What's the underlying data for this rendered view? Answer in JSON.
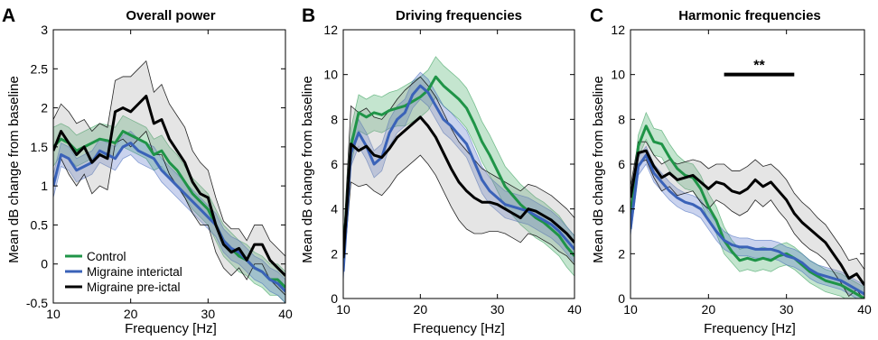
{
  "chart_data": [
    {
      "panel": "A",
      "type": "line",
      "title": "Overall power",
      "xlabel": "Frequency [Hz]",
      "ylabel": "Mean dB change from baseline",
      "xlim": [
        10,
        40
      ],
      "ylim": [
        -0.5,
        3
      ],
      "xticks": [
        "10",
        "20",
        "30",
        "40"
      ],
      "yticks": [
        "-0.5",
        "0",
        "0.5",
        "1",
        "1.5",
        "2",
        "2.5",
        "3"
      ],
      "legend": "bottom-left",
      "x": [
        10,
        11,
        12,
        13,
        14,
        15,
        16,
        17,
        18,
        19,
        20,
        21,
        22,
        23,
        24,
        25,
        26,
        27,
        28,
        29,
        30,
        31,
        32,
        33,
        34,
        35,
        36,
        37,
        38,
        39,
        40
      ],
      "series": [
        {
          "name": "Control",
          "color": "#1f9447",
          "values": [
            1.5,
            1.6,
            1.55,
            1.45,
            1.5,
            1.55,
            1.6,
            1.58,
            1.55,
            1.7,
            1.65,
            1.6,
            1.55,
            1.4,
            1.45,
            1.3,
            1.2,
            1.05,
            0.9,
            0.8,
            0.7,
            0.5,
            0.3,
            0.2,
            0.1,
            0.05,
            -0.05,
            -0.1,
            -0.2,
            -0.2,
            -0.3
          ],
          "upper": [
            1.75,
            1.8,
            1.75,
            1.65,
            1.7,
            1.75,
            1.8,
            1.78,
            1.75,
            1.9,
            1.85,
            1.8,
            1.75,
            1.6,
            1.65,
            1.5,
            1.4,
            1.25,
            1.1,
            1.0,
            0.9,
            0.7,
            0.5,
            0.4,
            0.3,
            0.25,
            0.15,
            0.1,
            0.0,
            0.0,
            -0.1
          ],
          "lower": [
            1.25,
            1.4,
            1.35,
            1.25,
            1.3,
            1.35,
            1.4,
            1.38,
            1.35,
            1.5,
            1.45,
            1.4,
            1.35,
            1.2,
            1.25,
            1.1,
            1.0,
            0.85,
            0.7,
            0.6,
            0.5,
            0.3,
            0.1,
            0.0,
            -0.1,
            -0.15,
            -0.25,
            -0.3,
            -0.4,
            -0.4,
            -0.5
          ]
        },
        {
          "name": "Migraine interictal",
          "color": "#3a62b8",
          "values": [
            1.0,
            1.4,
            1.35,
            1.2,
            1.25,
            1.3,
            1.45,
            1.4,
            1.35,
            1.5,
            1.55,
            1.45,
            1.4,
            1.35,
            1.2,
            1.1,
            1.0,
            0.9,
            0.8,
            0.7,
            0.6,
            0.5,
            0.3,
            0.2,
            0.15,
            0.05,
            -0.05,
            -0.1,
            -0.2,
            -0.25,
            -0.35
          ],
          "upper": [
            1.15,
            1.55,
            1.5,
            1.35,
            1.4,
            1.45,
            1.6,
            1.55,
            1.5,
            1.65,
            1.7,
            1.6,
            1.55,
            1.5,
            1.35,
            1.25,
            1.15,
            1.05,
            0.95,
            0.85,
            0.75,
            0.65,
            0.45,
            0.35,
            0.3,
            0.2,
            0.1,
            0.05,
            -0.05,
            -0.1,
            -0.2
          ],
          "lower": [
            0.85,
            1.25,
            1.2,
            1.05,
            1.1,
            1.15,
            1.3,
            1.25,
            1.2,
            1.35,
            1.4,
            1.3,
            1.25,
            1.2,
            1.05,
            0.95,
            0.85,
            0.75,
            0.65,
            0.55,
            0.45,
            0.35,
            0.15,
            0.05,
            0.0,
            -0.1,
            -0.2,
            -0.25,
            -0.35,
            -0.4,
            -0.5
          ]
        },
        {
          "name": "Migraine pre-ictal",
          "color": "#000000",
          "values": [
            1.45,
            1.7,
            1.55,
            1.4,
            1.5,
            1.3,
            1.4,
            1.35,
            1.95,
            2.0,
            1.95,
            2.05,
            2.15,
            1.8,
            1.85,
            1.6,
            1.45,
            1.3,
            1.05,
            0.9,
            0.85,
            0.5,
            0.25,
            0.15,
            0.2,
            0.05,
            0.25,
            0.25,
            0.05,
            -0.05,
            -0.15
          ],
          "upper": [
            1.85,
            2.05,
            1.95,
            1.8,
            1.85,
            1.7,
            1.8,
            1.75,
            2.35,
            2.4,
            2.4,
            2.5,
            2.6,
            2.2,
            2.3,
            2.05,
            1.9,
            1.75,
            1.45,
            1.3,
            1.2,
            0.85,
            0.55,
            0.45,
            0.45,
            0.3,
            0.5,
            0.5,
            0.3,
            0.2,
            0.1
          ],
          "lower": [
            1.05,
            1.35,
            1.15,
            1.0,
            1.15,
            0.9,
            1.0,
            0.95,
            1.55,
            1.6,
            1.5,
            1.6,
            1.7,
            1.4,
            1.4,
            1.15,
            1.0,
            0.85,
            0.65,
            0.5,
            0.5,
            0.15,
            -0.05,
            -0.15,
            -0.05,
            -0.2,
            0.0,
            0.0,
            -0.2,
            -0.3,
            -0.4
          ]
        }
      ]
    },
    {
      "panel": "B",
      "type": "line",
      "title": "Driving frequencies",
      "xlabel": "Frequency [Hz]",
      "ylabel": "Mean dB change from baseline",
      "xlim": [
        10,
        40
      ],
      "ylim": [
        0,
        12
      ],
      "xticks": [
        "10",
        "20",
        "30",
        "40"
      ],
      "yticks": [
        "0",
        "2",
        "4",
        "6",
        "8",
        "10",
        "12"
      ],
      "x": [
        10,
        11,
        12,
        13,
        14,
        15,
        16,
        17,
        18,
        19,
        20,
        21,
        22,
        23,
        24,
        25,
        26,
        27,
        28,
        29,
        30,
        31,
        32,
        33,
        34,
        35,
        36,
        37,
        38,
        39,
        40
      ],
      "series": [
        {
          "name": "Control",
          "color": "#1f9447",
          "values": [
            2,
            6.8,
            8.3,
            8.1,
            8.3,
            8.2,
            8.4,
            8.5,
            8.6,
            8.8,
            9.0,
            9.3,
            9.9,
            9.5,
            9.2,
            8.9,
            8.5,
            7.8,
            7.0,
            6.4,
            5.7,
            5.0,
            4.6,
            4.2,
            3.9,
            3.6,
            3.4,
            3.1,
            2.8,
            2.3,
            1.9
          ],
          "upper": [
            2.5,
            7.6,
            9.1,
            8.9,
            9.1,
            9.0,
            9.2,
            9.3,
            9.5,
            9.7,
            9.9,
            10.2,
            10.8,
            10.4,
            10.1,
            9.8,
            9.4,
            8.7,
            7.9,
            7.3,
            6.6,
            5.9,
            5.5,
            5.1,
            4.8,
            4.5,
            4.3,
            4.0,
            3.7,
            3.2,
            2.8
          ],
          "lower": [
            1.5,
            6.0,
            7.5,
            7.3,
            7.5,
            7.4,
            7.6,
            7.7,
            7.7,
            7.9,
            8.1,
            8.4,
            9.0,
            8.6,
            8.3,
            8.0,
            7.6,
            6.9,
            6.1,
            5.5,
            4.8,
            4.1,
            3.7,
            3.3,
            3.0,
            2.7,
            2.5,
            2.2,
            1.9,
            1.4,
            1.0
          ]
        },
        {
          "name": "Migraine interictal",
          "color": "#3a62b8",
          "values": [
            1.2,
            6.5,
            7.4,
            6.8,
            6.0,
            6.3,
            7.4,
            8.0,
            8.3,
            9.1,
            9.5,
            9.2,
            8.6,
            8.0,
            7.7,
            7.3,
            6.9,
            6.1,
            5.3,
            4.8,
            4.5,
            4.2,
            4.1,
            4.0,
            3.9,
            3.7,
            3.5,
            3.3,
            3.0,
            2.6,
            2.2
          ],
          "upper": [
            1.6,
            7.1,
            8.0,
            7.4,
            6.6,
            6.9,
            8.0,
            8.6,
            8.9,
            9.7,
            10.1,
            9.8,
            9.2,
            8.6,
            8.3,
            7.9,
            7.5,
            6.7,
            5.9,
            5.4,
            5.1,
            4.8,
            4.7,
            4.6,
            4.5,
            4.3,
            4.1,
            3.9,
            3.6,
            3.2,
            2.8
          ],
          "lower": [
            0.8,
            5.9,
            6.8,
            6.2,
            5.4,
            5.7,
            6.8,
            7.4,
            7.7,
            8.5,
            8.9,
            8.6,
            8.0,
            7.4,
            7.1,
            6.7,
            6.3,
            5.5,
            4.7,
            4.2,
            3.9,
            3.6,
            3.5,
            3.4,
            3.3,
            3.1,
            2.9,
            2.7,
            2.4,
            2.0,
            1.6
          ]
        },
        {
          "name": "Migraine pre-ictal",
          "color": "#000000",
          "values": [
            1.8,
            6.9,
            6.6,
            6.8,
            6.4,
            6.3,
            6.7,
            7.2,
            7.5,
            7.8,
            8.1,
            7.7,
            7.2,
            6.5,
            5.8,
            5.2,
            4.8,
            4.5,
            4.3,
            4.3,
            4.2,
            4.0,
            3.8,
            3.6,
            4.0,
            3.9,
            3.7,
            3.5,
            3.2,
            2.9,
            2.5
          ],
          "upper": [
            2.4,
            8.6,
            8.3,
            8.5,
            8.1,
            8.0,
            8.4,
            8.9,
            9.3,
            9.6,
            9.9,
            9.5,
            9.0,
            8.3,
            7.6,
            7.0,
            6.6,
            6.2,
            5.8,
            5.6,
            5.4,
            5.2,
            5.0,
            4.8,
            5.1,
            5.0,
            4.8,
            4.6,
            4.3,
            4.0,
            3.6
          ],
          "lower": [
            1.2,
            5.2,
            5.0,
            5.1,
            4.8,
            4.6,
            5.0,
            5.5,
            5.8,
            6.1,
            6.4,
            6.0,
            5.5,
            4.8,
            4.1,
            3.5,
            3.1,
            2.9,
            2.9,
            3.0,
            3.0,
            2.9,
            2.7,
            2.5,
            2.9,
            2.8,
            2.6,
            2.4,
            2.1,
            1.9,
            1.5
          ]
        }
      ]
    },
    {
      "panel": "C",
      "type": "line",
      "title": "Harmonic frequencies",
      "xlabel": "Frequency [Hz]",
      "ylabel": "Mean dB change from baseline",
      "xlim": [
        10,
        40
      ],
      "ylim": [
        0,
        12
      ],
      "xticks": [
        "10",
        "20",
        "30",
        "40"
      ],
      "yticks": [
        "0",
        "2",
        "4",
        "6",
        "8",
        "10",
        "12"
      ],
      "annotation": {
        "text": "**",
        "x_start": 22,
        "x_end": 31,
        "y": 10
      },
      "x": [
        10,
        11,
        12,
        13,
        14,
        15,
        16,
        17,
        18,
        19,
        20,
        21,
        22,
        23,
        24,
        25,
        26,
        27,
        28,
        29,
        30,
        31,
        32,
        33,
        34,
        35,
        36,
        37,
        38,
        39,
        40
      ],
      "series": [
        {
          "name": "Control",
          "color": "#1f9447",
          "values": [
            3.5,
            6.8,
            7.7,
            7.0,
            6.9,
            6.3,
            5.8,
            5.5,
            5.4,
            4.9,
            4.1,
            3.5,
            2.6,
            2.1,
            1.7,
            1.8,
            1.7,
            1.8,
            1.7,
            1.9,
            2.0,
            1.8,
            1.5,
            1.2,
            1.0,
            0.8,
            0.7,
            0.6,
            0.4,
            0.2,
            0.0
          ],
          "upper": [
            3.9,
            7.3,
            8.3,
            7.6,
            7.5,
            6.9,
            6.4,
            6.1,
            6.0,
            5.5,
            4.7,
            4.1,
            3.2,
            2.6,
            2.2,
            2.3,
            2.2,
            2.3,
            2.2,
            2.4,
            2.5,
            2.3,
            2.0,
            1.7,
            1.5,
            1.3,
            1.2,
            1.1,
            0.9,
            0.7,
            0.5
          ],
          "lower": [
            3.1,
            6.3,
            7.1,
            6.4,
            6.3,
            5.7,
            5.2,
            4.9,
            4.8,
            4.3,
            3.5,
            2.9,
            2.0,
            1.6,
            1.2,
            1.3,
            1.2,
            1.3,
            1.2,
            1.4,
            1.5,
            1.3,
            1.0,
            0.7,
            0.5,
            0.3,
            0.2,
            0.1,
            -0.1,
            -0.3,
            -0.4
          ]
        },
        {
          "name": "Migraine interictal",
          "color": "#3a62b8",
          "values": [
            3.1,
            5.9,
            6.4,
            5.6,
            5.2,
            4.8,
            4.5,
            4.3,
            4.2,
            4.0,
            3.5,
            3.0,
            2.6,
            2.4,
            2.3,
            2.3,
            2.2,
            2.2,
            2.2,
            2.1,
            1.9,
            1.8,
            1.6,
            1.3,
            1.1,
            1.0,
            0.9,
            0.8,
            0.6,
            0.4,
            0.2
          ],
          "upper": [
            3.4,
            6.3,
            6.8,
            6.0,
            5.6,
            5.2,
            4.9,
            4.7,
            4.6,
            4.4,
            3.9,
            3.4,
            3.0,
            2.8,
            2.7,
            2.7,
            2.6,
            2.6,
            2.6,
            2.5,
            2.3,
            2.2,
            2.0,
            1.7,
            1.5,
            1.4,
            1.3,
            1.2,
            1.0,
            0.8,
            0.6
          ],
          "lower": [
            2.8,
            5.5,
            6.0,
            5.2,
            4.8,
            4.4,
            4.1,
            3.9,
            3.8,
            3.6,
            3.1,
            2.6,
            2.2,
            2.0,
            1.9,
            1.9,
            1.8,
            1.8,
            1.8,
            1.7,
            1.5,
            1.4,
            1.2,
            0.9,
            0.7,
            0.6,
            0.5,
            0.4,
            0.2,
            0.0,
            -0.2
          ]
        },
        {
          "name": "Migraine pre-ictal",
          "color": "#000000",
          "values": [
            4.5,
            6.5,
            6.6,
            5.9,
            5.4,
            5.6,
            5.3,
            5.4,
            5.5,
            5.2,
            4.9,
            5.2,
            5.1,
            4.8,
            4.7,
            4.9,
            5.3,
            5.0,
            5.2,
            4.8,
            4.4,
            3.8,
            3.4,
            3.1,
            2.8,
            2.5,
            2.0,
            1.5,
            0.9,
            1.1,
            0.6
          ],
          "upper": [
            5.0,
            7.0,
            7.0,
            6.4,
            6.0,
            6.2,
            6.0,
            6.1,
            6.2,
            6.1,
            5.8,
            6.0,
            6.0,
            5.7,
            5.7,
            5.9,
            6.2,
            5.9,
            6.0,
            5.7,
            5.3,
            4.7,
            4.3,
            4.0,
            3.6,
            3.3,
            2.8,
            2.3,
            1.7,
            1.8,
            1.3
          ],
          "lower": [
            4.0,
            6.0,
            6.2,
            5.4,
            4.8,
            5.0,
            4.6,
            4.7,
            4.8,
            4.3,
            4.0,
            4.4,
            4.2,
            3.9,
            3.7,
            3.9,
            4.4,
            4.1,
            4.4,
            3.9,
            3.5,
            2.9,
            2.5,
            2.2,
            2.0,
            1.7,
            1.2,
            0.7,
            0.1,
            0.4,
            -0.1
          ]
        }
      ]
    }
  ],
  "panel_letters": [
    "A",
    "B",
    "C"
  ],
  "legend_entries": [
    "Control",
    "Migraine interictal",
    "Migraine pre-ictal"
  ]
}
